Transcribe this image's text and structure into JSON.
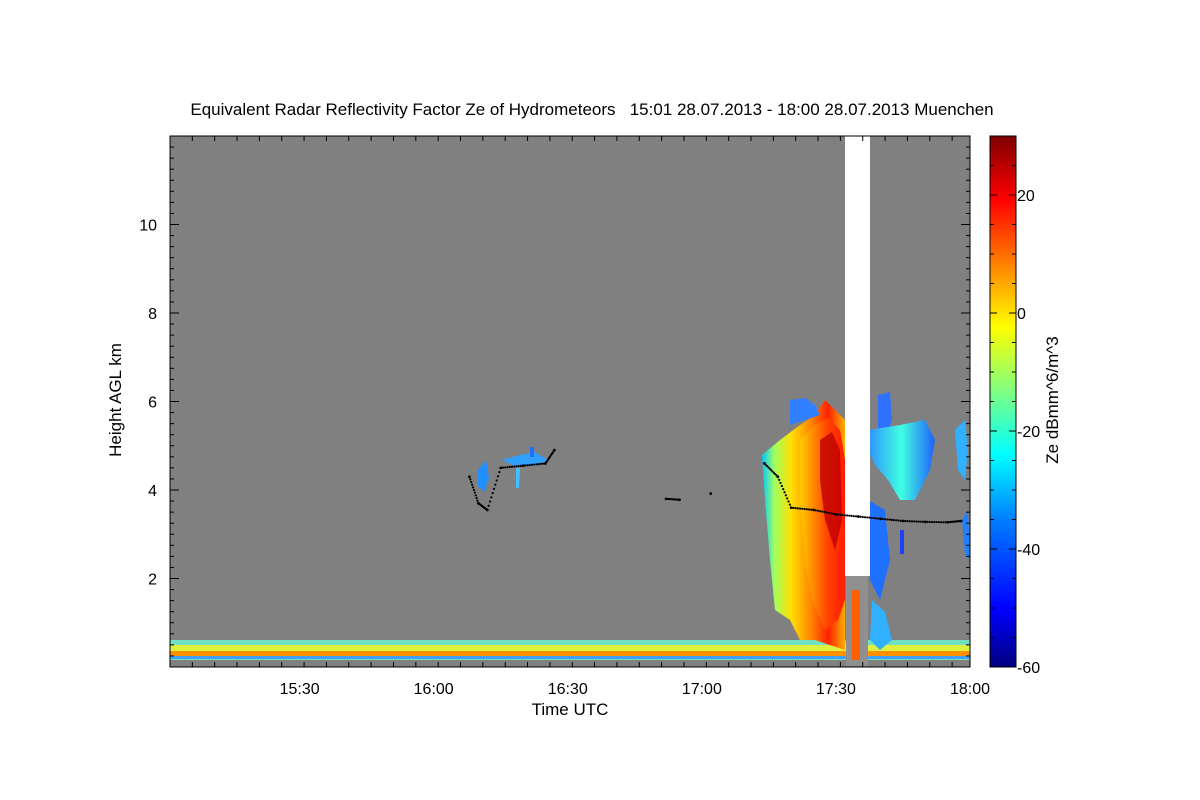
{
  "chart_data": {
    "type": "heatmap",
    "title": "Equivalent Radar Reflectivity Factor Ze of Hydrometeors   15:01 28.07.2013 - 18:00 28.07.2013 Muenchen",
    "xlabel": "Time UTC",
    "ylabel": "Height AGL km",
    "colorbar_label": "Ze dBmm^6/m^3",
    "xlim": [
      "15:01",
      "18:00"
    ],
    "ylim": [
      0,
      12
    ],
    "x_ticks": [
      "15:30",
      "16:00",
      "16:30",
      "17:00",
      "17:30",
      "18:00"
    ],
    "y_ticks": [
      2,
      4,
      6,
      8,
      10
    ],
    "colorbar_range": [
      -60,
      30
    ],
    "colorbar_ticks": [
      -60,
      -40,
      -20,
      0,
      20
    ],
    "background_color": "#808080",
    "colormap": [
      "#000080",
      "#0000ff",
      "#0080ff",
      "#00ffff",
      "#80ff80",
      "#ffff00",
      "#ff8000",
      "#ff0000",
      "#800000"
    ],
    "data_gap": {
      "time_start": "17:33",
      "time_end": "17:38",
      "height_bottom": 2.0,
      "height_top": 12
    },
    "cloud_base_markers": [
      {
        "t": "16:08",
        "h": 4.3
      },
      {
        "t": "16:10",
        "h": 3.7
      },
      {
        "t": "16:12",
        "h": 3.55
      },
      {
        "t": "16:15",
        "h": 4.5
      },
      {
        "t": "16:20",
        "h": 4.55
      },
      {
        "t": "16:25",
        "h": 4.6
      },
      {
        "t": "16:27",
        "h": 4.9
      },
      {
        "t": "16:52",
        "h": 3.8
      },
      {
        "t": "16:55",
        "h": 3.78
      },
      {
        "t": "17:02",
        "h": 3.92
      },
      {
        "t": "17:14",
        "h": 4.6
      },
      {
        "t": "17:17",
        "h": 4.3
      },
      {
        "t": "17:20",
        "h": 3.6
      },
      {
        "t": "17:25",
        "h": 3.55
      },
      {
        "t": "17:30",
        "h": 3.45
      },
      {
        "t": "17:35",
        "h": 3.4
      },
      {
        "t": "17:40",
        "h": 3.35
      },
      {
        "t": "17:45",
        "h": 3.3
      },
      {
        "t": "17:50",
        "h": 3.28
      },
      {
        "t": "17:55",
        "h": 3.27
      },
      {
        "t": "17:58",
        "h": 3.3
      }
    ]
  }
}
